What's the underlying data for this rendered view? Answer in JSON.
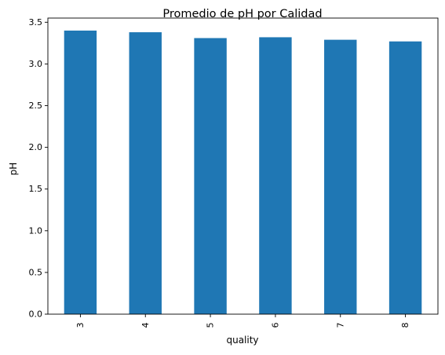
{
  "chart_data": {
    "type": "bar",
    "title": "Promedio de pH por Calidad",
    "xlabel": "quality",
    "ylabel": "pH",
    "categories": [
      "3",
      "4",
      "5",
      "6",
      "7",
      "8"
    ],
    "values": [
      3.4,
      3.38,
      3.31,
      3.32,
      3.29,
      3.27
    ],
    "ylim": [
      0,
      3.55
    ],
    "yticks": [
      "0.0",
      "0.5",
      "1.0",
      "1.5",
      "2.0",
      "2.5",
      "3.0",
      "3.5"
    ],
    "ytick_values": [
      0,
      0.5,
      1.0,
      1.5,
      2.0,
      2.5,
      3.0,
      3.5
    ],
    "bar_color": "#1f77b4",
    "grid": false,
    "legend": "none"
  }
}
